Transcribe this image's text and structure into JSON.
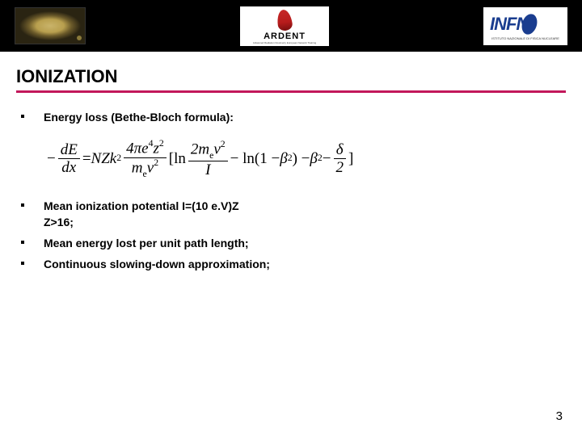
{
  "header": {
    "logo_mid_text": "ARDENT",
    "logo_mid_sub": "Advanced Radiation Dosimetry European Network Training",
    "logo_right_text": "INFN",
    "logo_right_sub": "ISTITUTO NAZIONALE DI FISICA NUCLEARE"
  },
  "title": "IONIZATION",
  "title_underline_color": "#c2185b",
  "bullets": {
    "b1": "Energy loss (Bethe-Bloch formula):",
    "b2_l1": "Mean ionization potential I=(10 e.V)Z",
    "b2_l2": "Z>16;",
    "b3": "Mean energy lost per unit path length;",
    "b4": "Continuous slowing-down approximation;"
  },
  "formula": {
    "lead_minus": "−",
    "frac1_num": "dE",
    "frac1_den": "dx",
    "eq": " = ",
    "nzk": "NZk",
    "nzk_sup": "2",
    "frac2_num_a": "4πe",
    "frac2_num_a_sup": "4",
    "frac2_num_b": "z",
    "frac2_num_b_sup": "2",
    "frac2_den_a": "m",
    "frac2_den_a_sub": "e",
    "frac2_den_b": "v",
    "frac2_den_b_sup": "2",
    "br_open": "[",
    "ln1": "ln",
    "frac3_num_a": "2m",
    "frac3_num_a_sub": "e",
    "frac3_num_b": "v",
    "frac3_num_b_sup": "2",
    "frac3_den": "I",
    "minus2": " − ln(1 − ",
    "beta1": "β",
    "beta1_sup": "2",
    "close_minus": ") − ",
    "beta2": "β",
    "beta2_sup": "2",
    "minus3": " − ",
    "frac4_num": "δ",
    "frac4_den": "2",
    "br_close": "]"
  },
  "page_number": "3"
}
